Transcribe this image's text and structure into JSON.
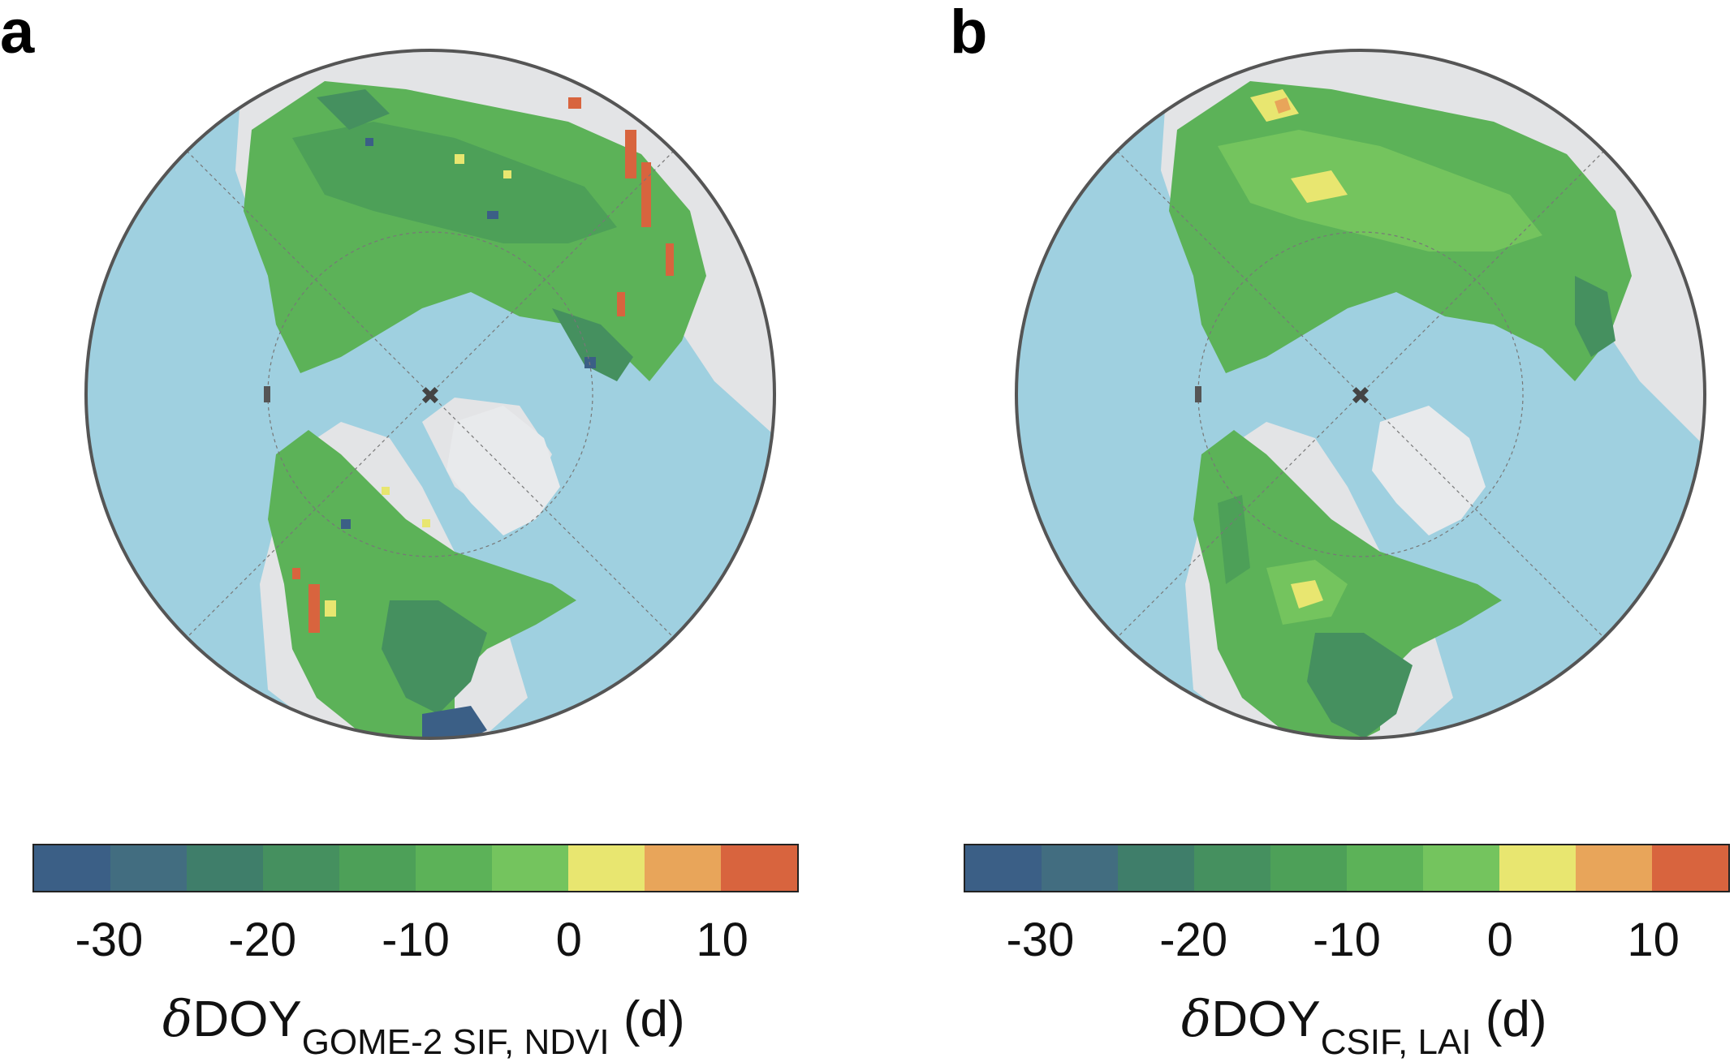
{
  "panels": [
    {
      "letter": "a",
      "label_main": "DOY",
      "label_delta": "δ",
      "label_sub": "GOME-2 SIF, NDVI",
      "label_unit": " (d)"
    },
    {
      "letter": "b",
      "label_main": "DOY",
      "label_delta": "δ",
      "label_sub": "CSIF, LAI",
      "label_unit": " (d)"
    }
  ],
  "chart_data": [
    {
      "type": "heatmap",
      "projection": "north-polar-stereographic",
      "panel": "a",
      "colorbar": {
        "ticks": [
          -30,
          -20,
          -10,
          0,
          10
        ],
        "tick_labels": [
          "-30",
          "-20",
          "-10",
          "0",
          "10"
        ],
        "range": [
          -35,
          15
        ],
        "bins": [
          -35,
          -30,
          -25,
          -20,
          -15,
          -10,
          -5,
          0,
          5,
          10,
          15
        ],
        "colors": [
          "#3b5f86",
          "#426d80",
          "#3f7e6a",
          "#45905f",
          "#4da058",
          "#5cb258",
          "#74c45e",
          "#e8e670",
          "#e8a55a",
          "#d8643e"
        ],
        "label": "δDOY GOME-2 SIF, NDVI (d)"
      },
      "colors": {
        "ocean": "#9fd0e0",
        "no_data_land": "#e3e4e6"
      }
    },
    {
      "type": "heatmap",
      "projection": "north-polar-stereographic",
      "panel": "b",
      "colorbar": {
        "ticks": [
          -30,
          -20,
          -10,
          0,
          10
        ],
        "tick_labels": [
          "-30",
          "-20",
          "-10",
          "0",
          "10"
        ],
        "range": [
          -35,
          15
        ],
        "bins": [
          -35,
          -30,
          -25,
          -20,
          -15,
          -10,
          -5,
          0,
          5,
          10,
          15
        ],
        "colors": [
          "#3b5f86",
          "#426d80",
          "#3f7e6a",
          "#45905f",
          "#4da058",
          "#5cb258",
          "#74c45e",
          "#e8e670",
          "#e8a55a",
          "#d8643e"
        ],
        "label": "δDOY CSIF, LAI (d)"
      },
      "colors": {
        "ocean": "#9fd0e0",
        "no_data_land": "#e3e4e6"
      }
    }
  ]
}
